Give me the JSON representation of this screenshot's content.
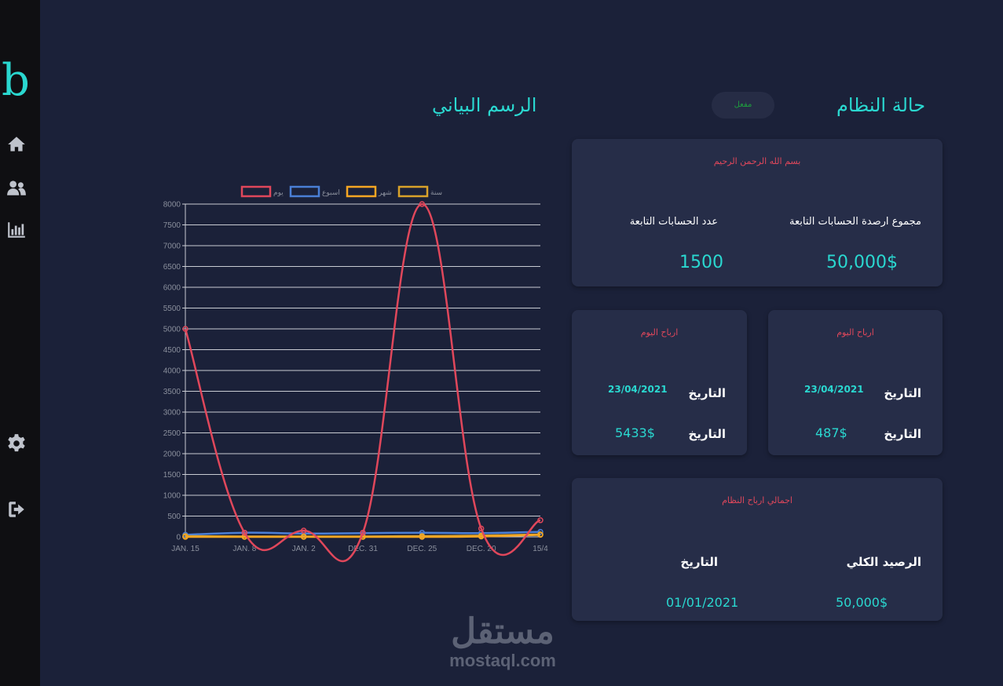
{
  "sidebar": {
    "brand": "b",
    "icons": [
      "home-icon",
      "users-icon",
      "chart-bar-icon",
      "gear-icon",
      "logout-icon"
    ]
  },
  "chart_section": {
    "title": "الرسم البياني"
  },
  "status_section": {
    "title": "حالة النظام",
    "status_label": "مفعل"
  },
  "summary_card": {
    "header": "بسم الله الرحمن الرحيم",
    "total_balance_label": "مجموع ارصدة الحسابات التابعة",
    "total_balance_value": "50,000$",
    "accounts_count_label": "عدد الحسابات التابعة",
    "accounts_count_value": "1500"
  },
  "profit_card_right": {
    "header": "ارباح اليوم",
    "date_label": "التاريخ",
    "date_value": "23/04/2021",
    "amount_label": "التاريخ",
    "amount_value": "487$"
  },
  "profit_card_left": {
    "header": "ارباح اليوم",
    "date_label": "التاريخ",
    "date_value": "23/04/2021",
    "amount_label": "التاريخ",
    "amount_value": "5433$"
  },
  "total_card": {
    "header": "اجمالي ارباح النظام",
    "balance_label": "الرصيد الكلي",
    "balance_value": "50,000$",
    "date_label": "التاريخ",
    "date_value": "01/01/2021"
  },
  "watermark": {
    "arabic": "مستقل",
    "latin": "mostaql.com"
  },
  "colors": {
    "accent": "#2ad8d0",
    "red": "#e0475b",
    "blue": "#4a7fd6",
    "orange": "#f5a623",
    "gold": "#d9a22a"
  },
  "chart_data": {
    "type": "line",
    "categories": [
      "JAN. 15",
      "JAN. 8",
      "JAN. 2",
      "DEC. 31",
      "DEC. 25",
      "DEC. 20",
      "15/4"
    ],
    "ylim": [
      0,
      8000
    ],
    "yticks": [
      0,
      500,
      1000,
      1500,
      2000,
      2500,
      3000,
      3500,
      4000,
      4500,
      5000,
      5500,
      6000,
      6500,
      7000,
      7500,
      8000
    ],
    "grid": true,
    "legend_position": "top",
    "series": [
      {
        "name": "يوم",
        "color": "#e0475b",
        "values": [
          5000,
          100,
          150,
          100,
          8000,
          200,
          400
        ]
      },
      {
        "name": "اسبوع",
        "color": "#4a7fd6",
        "values": [
          50,
          100,
          80,
          90,
          100,
          90,
          120
        ]
      },
      {
        "name": "شهر",
        "color": "#f5a623",
        "values": [
          0,
          0,
          0,
          0,
          0,
          10,
          50
        ]
      },
      {
        "name": "سنة",
        "color": "#d9a22a",
        "values": [
          20,
          10,
          10,
          10,
          20,
          30,
          60
        ]
      }
    ]
  }
}
